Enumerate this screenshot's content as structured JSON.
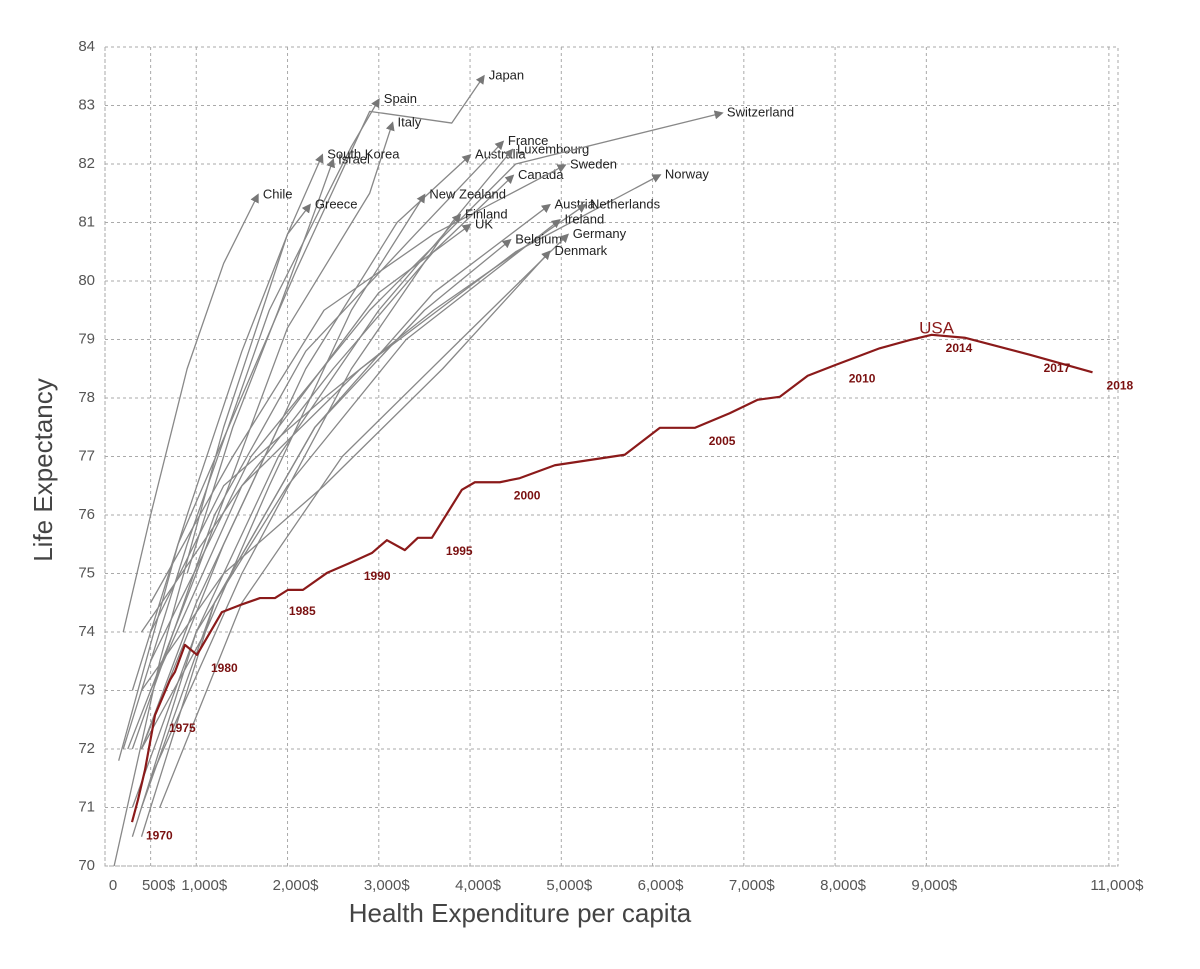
{
  "chart_data": {
    "type": "line",
    "xlabel": "Health Expenditure per capita",
    "ylabel": "Life Expectancy",
    "xlim": [
      0,
      11100
    ],
    "ylim": [
      70,
      84
    ],
    "xticks": [
      0,
      {
        "value": 500,
        "label": "500$"
      },
      {
        "value": 1000,
        "label": "1,000$"
      },
      {
        "value": 2000,
        "label": "2,000$"
      },
      {
        "value": 3000,
        "label": "3,000$"
      },
      {
        "value": 4000,
        "label": "4,000$"
      },
      {
        "value": 5000,
        "label": "5,000$"
      },
      {
        "value": 6000,
        "label": "6,000$"
      },
      {
        "value": 7000,
        "label": "7,000$"
      },
      {
        "value": 8000,
        "label": "8,000$"
      },
      {
        "value": 9000,
        "label": "9,000$"
      },
      {
        "value": 11000,
        "label": "11,000$"
      }
    ],
    "yticks": [
      70,
      71,
      72,
      73,
      74,
      75,
      76,
      77,
      78,
      79,
      80,
      81,
      82,
      83,
      84
    ],
    "grid": true,
    "series": [
      {
        "name": "USA",
        "color": "#8b1a1a",
        "x": [
          296,
          361,
          438,
          548,
          712,
          767,
          876,
          1008,
          1281,
          1479,
          1698,
          1862,
          2004,
          2169,
          2432,
          2683,
          2924,
          3089,
          3286,
          3428,
          3582,
          3910,
          4053,
          4326,
          4545,
          4929,
          5695,
          6079,
          6462,
          6845,
          7152,
          7393,
          7700,
          7996,
          8489,
          8817,
          9058,
          9420,
          10131,
          10821
        ],
        "values": [
          70.75,
          71.13,
          71.64,
          72.58,
          73.18,
          73.32,
          73.78,
          73.61,
          74.34,
          74.46,
          74.58,
          74.58,
          74.72,
          74.72,
          75.01,
          75.18,
          75.35,
          75.57,
          75.4,
          75.61,
          75.61,
          76.43,
          76.56,
          76.56,
          76.63,
          76.85,
          77.03,
          77.49,
          77.49,
          77.74,
          77.97,
          78.02,
          78.38,
          78.56,
          78.85,
          78.99,
          79.08,
          79.03,
          78.74,
          78.44
        ],
        "point_labels": [
          "1970",
          null,
          null,
          "1975",
          null,
          null,
          null,
          "1980",
          null,
          null,
          null,
          "1985",
          null,
          null,
          null,
          "1990",
          null,
          null,
          null,
          null,
          "1995",
          null,
          null,
          "2000",
          null,
          null,
          null,
          null,
          "2005",
          null,
          null,
          null,
          null,
          "2010",
          null,
          null,
          "2014",
          null,
          "2017",
          "2018"
        ]
      },
      {
        "name": "Japan",
        "color": "#888888",
        "x": [
          150,
          800,
          2100,
          2900,
          3800,
          4150
        ],
        "values": [
          71.8,
          75.5,
          80.2,
          82.9,
          82.7,
          83.5
        ]
      },
      {
        "name": "Spain",
        "color": "#888888",
        "x": [
          200,
          900,
          1800,
          2700,
          3000
        ],
        "values": [
          72.0,
          75.5,
          79.5,
          82.3,
          83.1
        ]
      },
      {
        "name": "Italy",
        "color": "#888888",
        "x": [
          250,
          1000,
          2000,
          2900,
          3150
        ],
        "values": [
          72.0,
          75.0,
          79.2,
          81.5,
          82.7
        ]
      },
      {
        "name": "South Korea",
        "color": "#888888",
        "x": [
          100,
          600,
          1300,
          2000,
          2380
        ],
        "values": [
          70.0,
          73.5,
          77.5,
          80.8,
          82.15
        ]
      },
      {
        "name": "Israel",
        "color": "#888888",
        "x": [
          900,
          1400,
          1900,
          2300,
          2500
        ],
        "values": [
          75.0,
          77.5,
          79.5,
          81.2,
          82.07
        ]
      },
      {
        "name": "Chile",
        "color": "#888888",
        "x": [
          200,
          500,
          900,
          1300,
          1675
        ],
        "values": [
          74.0,
          76.0,
          78.5,
          80.3,
          81.47
        ]
      },
      {
        "name": "Greece",
        "color": "#888888",
        "x": [
          300,
          900,
          1500,
          2000,
          2245
        ],
        "values": [
          73.0,
          76.0,
          78.8,
          80.8,
          81.3
        ]
      },
      {
        "name": "Australia",
        "color": "#888888",
        "x": [
          400,
          1300,
          2200,
          3200,
          4000
        ],
        "values": [
          72.0,
          75.5,
          78.5,
          81.0,
          82.15
        ]
      },
      {
        "name": "France",
        "color": "#888888",
        "x": [
          300,
          1200,
          2200,
          3400,
          4360
        ],
        "values": [
          72.0,
          76.0,
          78.8,
          80.8,
          82.38
        ]
      },
      {
        "name": "Luxembourg",
        "color": "#888888",
        "x": [
          500,
          1500,
          2700,
          3800,
          4460
        ],
        "values": [
          71.5,
          75.0,
          78.5,
          81.0,
          82.24
        ]
      },
      {
        "name": "Canada",
        "color": "#888888",
        "x": [
          500,
          1500,
          2500,
          3600,
          4470
        ],
        "values": [
          73.0,
          76.5,
          78.5,
          80.5,
          81.8
        ]
      },
      {
        "name": "Sweden",
        "color": "#888888",
        "x": [
          500,
          1400,
          2400,
          3600,
          5040
        ],
        "values": [
          74.5,
          77.0,
          79.5,
          80.8,
          81.98
        ]
      },
      {
        "name": "Switzerland",
        "color": "#888888",
        "x": [
          500,
          1600,
          2900,
          4500,
          6760
        ],
        "values": [
          73.5,
          77.0,
          79.5,
          82.0,
          82.87
        ]
      },
      {
        "name": "Norway",
        "color": "#888888",
        "x": [
          400,
          1500,
          2800,
          4500,
          6080
        ],
        "values": [
          74.0,
          76.5,
          78.5,
          80.5,
          81.81
        ]
      },
      {
        "name": "New Zealand",
        "color": "#888888",
        "x": [
          400,
          1100,
          1800,
          2700,
          3500
        ],
        "values": [
          72.0,
          74.0,
          76.5,
          79.5,
          81.47
        ]
      },
      {
        "name": "Finland",
        "color": "#888888",
        "x": [
          300,
          1000,
          1900,
          3000,
          3890
        ],
        "values": [
          70.5,
          74.0,
          77.0,
          79.5,
          81.13
        ]
      },
      {
        "name": "UK",
        "color": "#888888",
        "x": [
          400,
          1000,
          1900,
          3000,
          4000
        ],
        "values": [
          72.0,
          74.5,
          77.5,
          79.8,
          80.96
        ]
      },
      {
        "name": "Austria",
        "color": "#888888",
        "x": [
          400,
          1200,
          2300,
          3600,
          4870
        ],
        "values": [
          70.5,
          74.5,
          77.5,
          79.8,
          81.3
        ]
      },
      {
        "name": "Netherlands",
        "color": "#888888",
        "x": [
          500,
          1300,
          2400,
          3600,
          5260
        ],
        "values": [
          74.0,
          76.5,
          78.0,
          79.5,
          81.3
        ]
      },
      {
        "name": "Ireland",
        "color": "#888888",
        "x": [
          300,
          1000,
          2000,
          3300,
          4980
        ],
        "values": [
          71.0,
          74.0,
          76.5,
          79.0,
          81.04
        ]
      },
      {
        "name": "Belgium",
        "color": "#888888",
        "x": [
          400,
          1200,
          2300,
          3500,
          4440
        ],
        "values": [
          71.0,
          74.5,
          77.5,
          79.5,
          80.7
        ]
      },
      {
        "name": "Germany",
        "color": "#888888",
        "x": [
          600,
          1500,
          2600,
          3900,
          5070
        ],
        "values": [
          71.0,
          74.5,
          77.0,
          79.0,
          80.79
        ]
      },
      {
        "name": "Denmark",
        "color": "#888888",
        "x": [
          400,
          1300,
          2400,
          3700,
          4870
        ],
        "values": [
          73.0,
          75.0,
          76.5,
          78.5,
          80.5
        ]
      }
    ]
  }
}
